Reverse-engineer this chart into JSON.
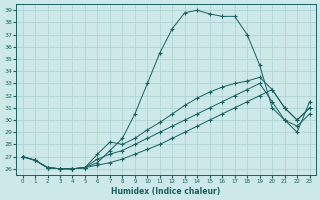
{
  "xlabel": "Humidex (Indice chaleur)",
  "xlim": [
    -0.5,
    23.5
  ],
  "ylim": [
    25.5,
    39.5
  ],
  "yticks": [
    26,
    27,
    28,
    29,
    30,
    31,
    32,
    33,
    34,
    35,
    36,
    37,
    38,
    39
  ],
  "xticks": [
    0,
    1,
    2,
    3,
    4,
    5,
    6,
    7,
    8,
    9,
    10,
    11,
    12,
    13,
    14,
    15,
    16,
    17,
    18,
    19,
    20,
    21,
    22,
    23
  ],
  "bg_color": "#cce8e8",
  "line_color": "#1a6060",
  "grid_color": "#aacfcf",
  "line1_x": [
    0,
    1,
    2,
    3,
    4,
    5,
    6,
    7,
    8,
    9,
    10,
    11,
    12,
    13,
    14,
    15,
    16,
    17,
    18,
    19,
    20,
    21,
    22,
    23
  ],
  "line1_y": [
    27.0,
    26.7,
    26.1,
    26.0,
    26.0,
    26.1,
    26.5,
    27.5,
    28.5,
    30.5,
    33.0,
    35.5,
    37.5,
    38.8,
    39.0,
    38.7,
    38.5,
    38.5,
    37.0,
    34.5,
    31.0,
    30.0,
    29.5,
    30.5
  ],
  "line2_x": [
    0,
    1,
    2,
    3,
    4,
    5,
    6,
    7,
    8,
    9,
    10,
    11,
    12,
    13,
    14,
    15,
    16,
    17,
    18,
    19,
    20,
    21,
    22,
    23
  ],
  "line2_y": [
    27.0,
    26.7,
    26.1,
    26.0,
    26.0,
    26.1,
    27.2,
    28.2,
    28.0,
    28.5,
    29.2,
    29.8,
    30.5,
    31.2,
    31.8,
    32.3,
    32.7,
    33.0,
    33.2,
    33.5,
    32.5,
    31.0,
    30.0,
    31.0
  ],
  "line3_x": [
    0,
    1,
    2,
    3,
    4,
    5,
    6,
    7,
    8,
    9,
    10,
    11,
    12,
    13,
    14,
    15,
    16,
    17,
    18,
    19,
    20,
    21,
    22,
    23
  ],
  "line3_y": [
    27.0,
    26.7,
    26.1,
    26.0,
    26.0,
    26.1,
    26.8,
    27.2,
    27.5,
    28.0,
    28.5,
    29.0,
    29.5,
    30.0,
    30.5,
    31.0,
    31.5,
    32.0,
    32.5,
    33.0,
    31.5,
    30.0,
    29.0,
    31.5
  ],
  "line4_x": [
    0,
    1,
    2,
    3,
    4,
    5,
    6,
    7,
    8,
    9,
    10,
    11,
    12,
    13,
    14,
    15,
    16,
    17,
    18,
    19,
    20,
    21,
    22,
    23
  ],
  "line4_y": [
    27.0,
    26.7,
    26.1,
    26.0,
    26.0,
    26.1,
    26.3,
    26.5,
    26.8,
    27.2,
    27.6,
    28.0,
    28.5,
    29.0,
    29.5,
    30.0,
    30.5,
    31.0,
    31.5,
    32.0,
    32.5,
    31.0,
    30.0,
    31.0
  ]
}
